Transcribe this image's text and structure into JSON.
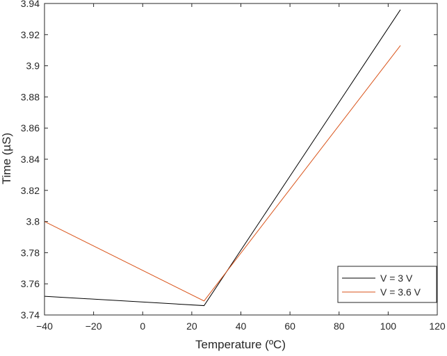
{
  "chart_data": {
    "type": "line",
    "title": "",
    "xlabel": "Temperature (ºC)",
    "ylabel": "Time (µS)",
    "xlim": [
      -40,
      120
    ],
    "ylim": [
      3.74,
      3.94
    ],
    "xticks": [
      -40,
      -20,
      0,
      20,
      40,
      60,
      80,
      100,
      120
    ],
    "xtick_labels": [
      "−40",
      "−20",
      "0",
      "20",
      "40",
      "60",
      "80",
      "100",
      "120"
    ],
    "yticks": [
      3.74,
      3.76,
      3.78,
      3.8,
      3.82,
      3.84,
      3.86,
      3.88,
      3.9,
      3.92,
      3.94
    ],
    "ytick_labels": [
      "3.74",
      "3.76",
      "3.78",
      "3.8",
      "3.82",
      "3.84",
      "3.86",
      "3.88",
      "3.9",
      "3.92",
      "3.94"
    ],
    "grid": false,
    "legend_position": "bottom-right",
    "x": [
      -40,
      25,
      105
    ],
    "series": [
      {
        "name": "V = 3 V",
        "color": "#000000",
        "values": [
          3.752,
          3.746,
          3.936
        ]
      },
      {
        "name": "V = 3.6 V",
        "color": "#d95319",
        "values": [
          3.8,
          3.749,
          3.913
        ]
      }
    ]
  }
}
